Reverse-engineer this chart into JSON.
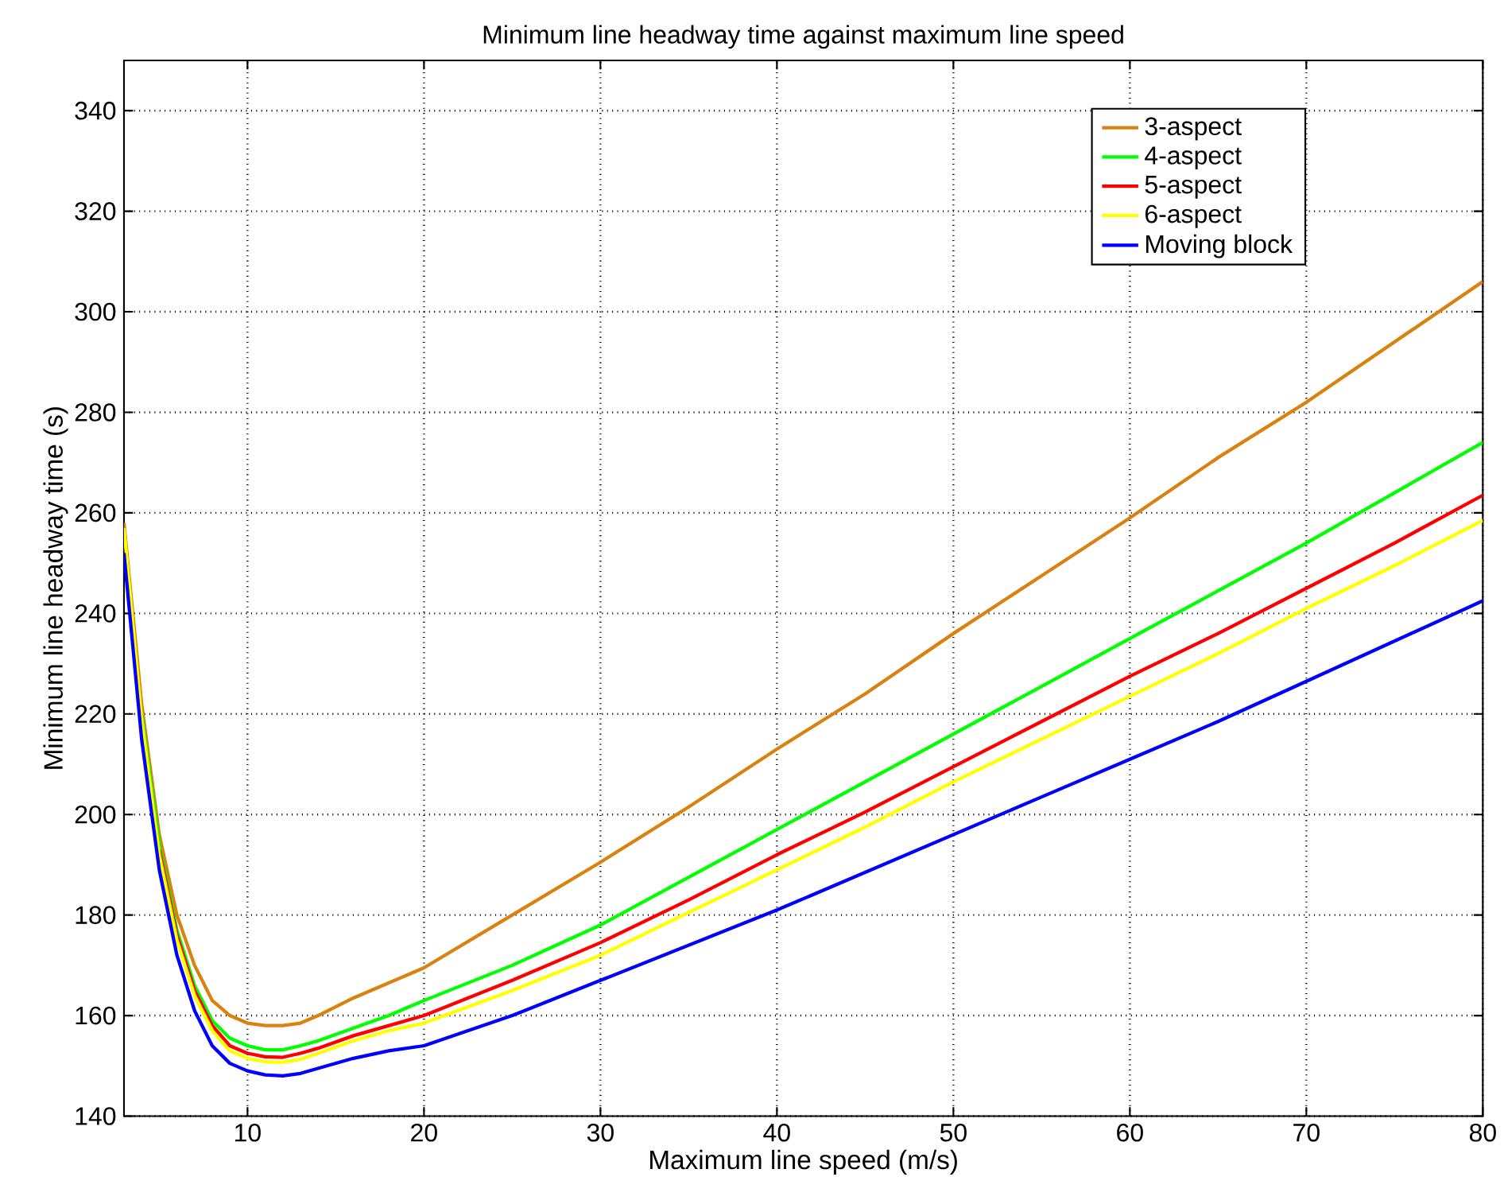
{
  "chart_data": {
    "type": "line",
    "title": "Minimum line headway time against maximum line speed",
    "xlabel": "Maximum line speed (m/s)",
    "ylabel": "Minimum line headway time (s)",
    "x": [
      3,
      4,
      5,
      6,
      7,
      8,
      9,
      10,
      11,
      12,
      13,
      14,
      16,
      18,
      20,
      25,
      30,
      35,
      40,
      45,
      50,
      55,
      60,
      65,
      70,
      75,
      80
    ],
    "series": [
      {
        "name": "3-aspect",
        "color": "#d9820f",
        "values": [
          258,
          222,
          196,
          180,
          170,
          163,
          160,
          158.5,
          158,
          158,
          158.5,
          160,
          163.5,
          166.5,
          169.5,
          180,
          190.5,
          201.5,
          213,
          224,
          236,
          247.5,
          259,
          271,
          282,
          294,
          306
        ]
      },
      {
        "name": "4-aspect",
        "color": "#00ff00",
        "values": [
          null,
          220,
          194,
          177,
          166,
          159,
          155.5,
          154,
          153.2,
          153.2,
          154,
          155,
          157.5,
          160,
          163,
          170,
          178,
          187.5,
          197,
          206.5,
          216,
          225.5,
          235,
          244.5,
          254,
          264,
          274
        ]
      },
      {
        "name": "5-aspect",
        "color": "#ff0000",
        "values": [
          null,
          null,
          193,
          176,
          165,
          158,
          154,
          152.5,
          151.8,
          151.7,
          152.5,
          153.5,
          156,
          158,
          160,
          167,
          174.5,
          183,
          192,
          200.5,
          209.5,
          218.5,
          227.5,
          236,
          245,
          254,
          263.5
        ]
      },
      {
        "name": "6-aspect",
        "color": "#ffff00",
        "values": [
          257,
          219,
          192,
          175,
          164,
          157,
          153,
          151.5,
          150.8,
          150.7,
          151.3,
          152.5,
          155,
          157,
          158.5,
          165,
          172,
          180.5,
          189,
          197.5,
          206.5,
          215,
          223.5,
          232,
          241,
          249.5,
          258.5
        ]
      },
      {
        "name": "Moving block",
        "color": "#0000ff",
        "values": [
          252,
          215,
          189,
          172,
          161,
          154,
          150.5,
          149,
          148.2,
          148,
          148.5,
          149.5,
          151.5,
          153,
          154,
          160,
          167,
          174,
          181,
          188.5,
          196,
          203.5,
          211,
          218.5,
          226.5,
          234.5,
          242.5
        ]
      }
    ],
    "xlim": [
      3,
      80
    ],
    "ylim": [
      140,
      350
    ],
    "xticks": [
      10,
      20,
      30,
      40,
      50,
      60,
      70,
      80
    ],
    "yticks": [
      140,
      160,
      180,
      200,
      220,
      240,
      260,
      280,
      300,
      320,
      340
    ],
    "grid": true,
    "legend": "top right",
    "line_style": "solid",
    "marker": "none"
  }
}
